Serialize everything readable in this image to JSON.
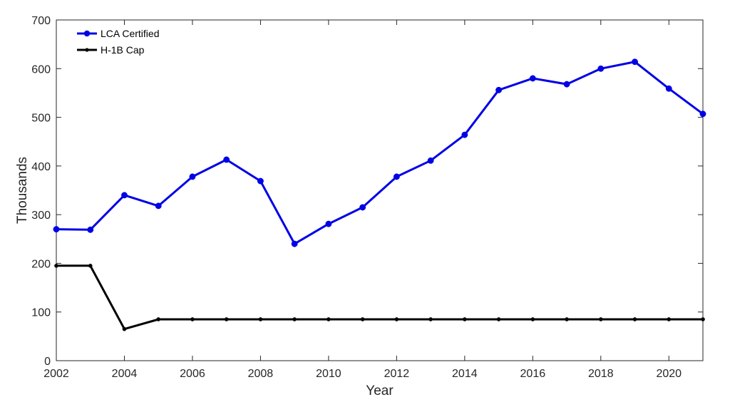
{
  "chart_data": {
    "type": "line",
    "xlabel": "Year",
    "ylabel": "Thousands",
    "xlim": [
      2002,
      2021
    ],
    "ylim": [
      0,
      700
    ],
    "x_ticks": [
      2002,
      2004,
      2006,
      2008,
      2010,
      2012,
      2014,
      2016,
      2018,
      2020
    ],
    "y_ticks": [
      0,
      100,
      200,
      300,
      400,
      500,
      600,
      700
    ],
    "grid": false,
    "legend_position": "top-left",
    "x": [
      2002,
      2003,
      2004,
      2005,
      2006,
      2007,
      2008,
      2009,
      2010,
      2011,
      2012,
      2013,
      2014,
      2015,
      2016,
      2017,
      2018,
      2019,
      2020,
      2021
    ],
    "series": [
      {
        "name": "LCA Certified",
        "color": "#0000e6",
        "marker": "circle-large",
        "values": [
          270,
          269,
          340,
          318,
          378,
          413,
          369,
          240,
          281,
          315,
          378,
          411,
          464,
          556,
          580,
          568,
          600,
          614,
          559,
          507
        ]
      },
      {
        "name": "H-1B Cap",
        "color": "#000000",
        "marker": "circle-small",
        "values": [
          195,
          195,
          65,
          85,
          85,
          85,
          85,
          85,
          85,
          85,
          85,
          85,
          85,
          85,
          85,
          85,
          85,
          85,
          85,
          85
        ]
      }
    ]
  }
}
